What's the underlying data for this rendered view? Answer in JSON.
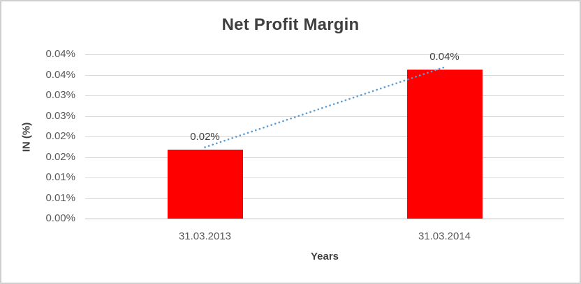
{
  "chart_data": {
    "type": "bar",
    "title": "Net Profit Margin",
    "xlabel": "Years",
    "ylabel": "IN (%)",
    "categories": [
      "31.03.2013",
      "31.03.2014"
    ],
    "series": [
      {
        "name": "Net Profit Margin",
        "type": "bar",
        "color": "#FF0000",
        "values": [
          0.0167,
          0.0363
        ],
        "data_labels": [
          "0.02%",
          "0.04%"
        ]
      },
      {
        "name": "Trendline",
        "type": "dotted_line",
        "color": "#5B9BD5",
        "values": [
          0.0167,
          0.0363
        ]
      }
    ],
    "y_axis": {
      "min": 0,
      "max": 0.04,
      "step": 0.005,
      "tick_labels_top_to_bottom": [
        "0.04%",
        "0.04%",
        "0.03%",
        "0.03%",
        "0.02%",
        "0.02%",
        "0.01%",
        "0.01%",
        "0.00%"
      ]
    },
    "grid": true,
    "legend": false,
    "styles": {
      "bar_color": "#FF0000",
      "trendline_color": "#5B9BD5",
      "gridline_color": "#D9D9D9",
      "axis_line_color": "#BFBFBF",
      "title_color": "#3F3F3F",
      "axis_title_color": "#3F3F3F",
      "tick_label_color": "#595959",
      "data_label_color": "#404040",
      "border_color": "#CFCFCF",
      "background": "#FFFFFF"
    }
  }
}
